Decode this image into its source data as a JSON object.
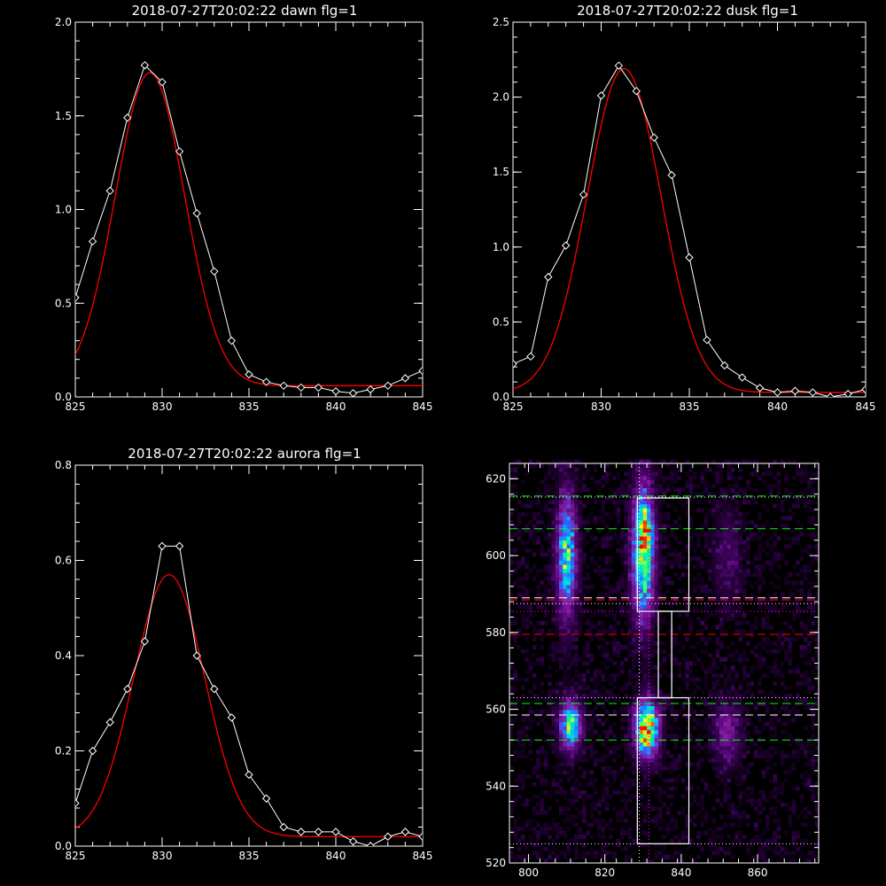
{
  "chart_data": [
    {
      "type": "line",
      "title": "2018-07-27T20:02:22 dawn flg=1",
      "xlim": [
        825,
        845
      ],
      "ylim": [
        0,
        2.0
      ],
      "xticks": [
        825,
        830,
        835,
        840,
        845
      ],
      "xtick_labels": [
        "825",
        "830",
        "835",
        "840",
        "845"
      ],
      "yticks": [
        0,
        0.5,
        1.0,
        1.5,
        2.0
      ],
      "ytick_labels": [
        "0.0",
        "0.5",
        "1.0",
        "1.5",
        "2.0"
      ],
      "grid": false,
      "series": [
        {
          "style": "data-diamonds",
          "color": "#ffffff",
          "x": [
            825,
            826,
            827,
            828,
            829,
            830,
            831,
            832,
            833,
            834,
            835,
            836,
            837,
            838,
            839,
            840,
            841,
            842,
            843,
            844,
            845
          ],
          "y": [
            0.53,
            0.83,
            1.1,
            1.49,
            1.77,
            1.68,
            1.31,
            0.98,
            0.67,
            0.3,
            0.12,
            0.08,
            0.06,
            0.05,
            0.05,
            0.03,
            0.02,
            0.04,
            0.06,
            0.1,
            0.14
          ]
        },
        {
          "style": "fit",
          "color": "#ff0000",
          "gauss": {
            "a": 1.67,
            "mu": 829.3,
            "sigma": 2.0,
            "c": 0.06
          }
        }
      ]
    },
    {
      "type": "line",
      "title": "2018-07-27T20:02:22 dusk flg=1",
      "xlim": [
        825,
        845
      ],
      "ylim": [
        0,
        2.5
      ],
      "xticks": [
        825,
        830,
        835,
        840,
        845
      ],
      "xtick_labels": [
        "825",
        "830",
        "835",
        "840",
        "845"
      ],
      "yticks": [
        0,
        0.5,
        1.0,
        1.5,
        2.0,
        2.5
      ],
      "ytick_labels": [
        "0.0",
        "0.5",
        "1.0",
        "1.5",
        "2.0",
        "2.5"
      ],
      "grid": false,
      "series": [
        {
          "style": "data-diamonds",
          "color": "#ffffff",
          "x": [
            825,
            826,
            827,
            828,
            829,
            830,
            831,
            832,
            833,
            834,
            835,
            836,
            837,
            838,
            839,
            840,
            841,
            842,
            843,
            844,
            845
          ],
          "y": [
            0.22,
            0.27,
            0.8,
            1.01,
            1.35,
            2.01,
            2.21,
            2.04,
            1.73,
            1.48,
            0.93,
            0.38,
            0.21,
            0.13,
            0.06,
            0.03,
            0.04,
            0.03,
            0.0,
            0.02,
            0.05
          ]
        },
        {
          "style": "fit",
          "color": "#ff0000",
          "gauss": {
            "a": 2.16,
            "mu": 831.3,
            "sigma": 2.1,
            "c": 0.03
          }
        }
      ]
    },
    {
      "type": "line",
      "title": "2018-07-27T20:02:22 aurora flg=1",
      "xlim": [
        825,
        845
      ],
      "ylim": [
        0,
        0.8
      ],
      "xticks": [
        825,
        830,
        835,
        840,
        845
      ],
      "xtick_labels": [
        "825",
        "830",
        "835",
        "840",
        "845"
      ],
      "yticks": [
        0,
        0.2,
        0.4,
        0.6,
        0.8
      ],
      "ytick_labels": [
        "0.0",
        "0.2",
        "0.4",
        "0.6",
        "0.8"
      ],
      "grid": false,
      "series": [
        {
          "style": "data-diamonds",
          "color": "#ffffff",
          "x": [
            825,
            826,
            827,
            828,
            829,
            830,
            831,
            832,
            833,
            834,
            835,
            836,
            837,
            838,
            839,
            840,
            841,
            842,
            843,
            844,
            845
          ],
          "y": [
            0.09,
            0.2,
            0.26,
            0.33,
            0.43,
            0.63,
            0.63,
            0.4,
            0.33,
            0.27,
            0.15,
            0.1,
            0.04,
            0.03,
            0.03,
            0.03,
            0.01,
            0.0,
            0.02,
            0.03,
            0.02
          ]
        },
        {
          "style": "fit",
          "color": "#ff0000",
          "gauss": {
            "a": 0.55,
            "mu": 830.4,
            "sigma": 2.05,
            "c": 0.02
          }
        }
      ]
    },
    {
      "type": "heatmap",
      "title": "",
      "colormap": [
        "#000000",
        "#2a0040",
        "#5a0a80",
        "#8a1ea0",
        "#3060ff",
        "#00c8ff",
        "#00ff90",
        "#ffff00",
        "#ff0000"
      ],
      "xlim": [
        795,
        876
      ],
      "ylim": [
        520,
        624
      ],
      "xticks": [
        800,
        820,
        840,
        860
      ],
      "xtick_labels": [
        "800",
        "820",
        "840",
        "860"
      ],
      "yticks": [
        520,
        540,
        560,
        580,
        600,
        620
      ],
      "ytick_labels": [
        "520",
        "540",
        "560",
        "580",
        "600",
        "620"
      ],
      "blobs": [
        {
          "cx": 810,
          "cy": 600,
          "sx": 1.8,
          "sy": 11,
          "a": 0.7
        },
        {
          "cx": 830,
          "cy": 601,
          "sx": 2.0,
          "sy": 12,
          "a": 0.85
        },
        {
          "cx": 831,
          "cy": 607,
          "sx": 1.2,
          "sy": 2.5,
          "a": 0.35
        },
        {
          "cx": 852,
          "cy": 600,
          "sx": 2.5,
          "sy": 9,
          "a": 0.18
        },
        {
          "cx": 811,
          "cy": 556,
          "sx": 2.0,
          "sy": 4.5,
          "a": 0.72
        },
        {
          "cx": 831,
          "cy": 555,
          "sx": 2.2,
          "sy": 5,
          "a": 1.0
        },
        {
          "cx": 852,
          "cy": 554,
          "sx": 2.5,
          "sy": 6,
          "a": 0.28
        }
      ],
      "horizontal_lines": [
        {
          "y": 615.5,
          "color": "#00ff00",
          "dash": "dashed"
        },
        {
          "y": 607,
          "color": "#00ff00",
          "dash": "dashed"
        },
        {
          "y": 589,
          "color": "#ffffff",
          "dash": "dashed"
        },
        {
          "y": 588.5,
          "color": "#ff0000",
          "dash": "dashed"
        },
        {
          "y": 579.5,
          "color": "#ff0000",
          "dash": "dashed"
        },
        {
          "y": 558.5,
          "color": "#ffffff",
          "dash": "dashed"
        },
        {
          "y": 561.5,
          "color": "#00ff00",
          "dash": "dashed"
        },
        {
          "y": 552,
          "color": "#00ff00",
          "dash": "dashed"
        },
        {
          "y": 615.2,
          "color": "#ffffff",
          "dash": "dotted"
        },
        {
          "y": 587.5,
          "color": "#ffffff",
          "dash": "dotted"
        },
        {
          "y": 585.5,
          "color": "#ff00ff",
          "dash": "dotted"
        },
        {
          "y": 563,
          "color": "#ffffff",
          "dash": "dotted"
        },
        {
          "y": 525,
          "color": "#ffffff",
          "dash": "dotted"
        }
      ],
      "vertical_lines": [
        {
          "x": 829.0,
          "color": "#ffffff",
          "dash": "dotted"
        },
        {
          "x": 831.5,
          "color": "#ff00ff",
          "dash": "dotted"
        }
      ],
      "boxes": [
        {
          "x0": 828.5,
          "x1": 842.0,
          "y0": 585.5,
          "y1": 615.0
        },
        {
          "x0": 834.0,
          "x1": 837.5,
          "y0": 563.0,
          "y1": 585.5
        },
        {
          "x0": 828.5,
          "x1": 842.0,
          "y0": 525.0,
          "y1": 563.0
        }
      ]
    }
  ]
}
